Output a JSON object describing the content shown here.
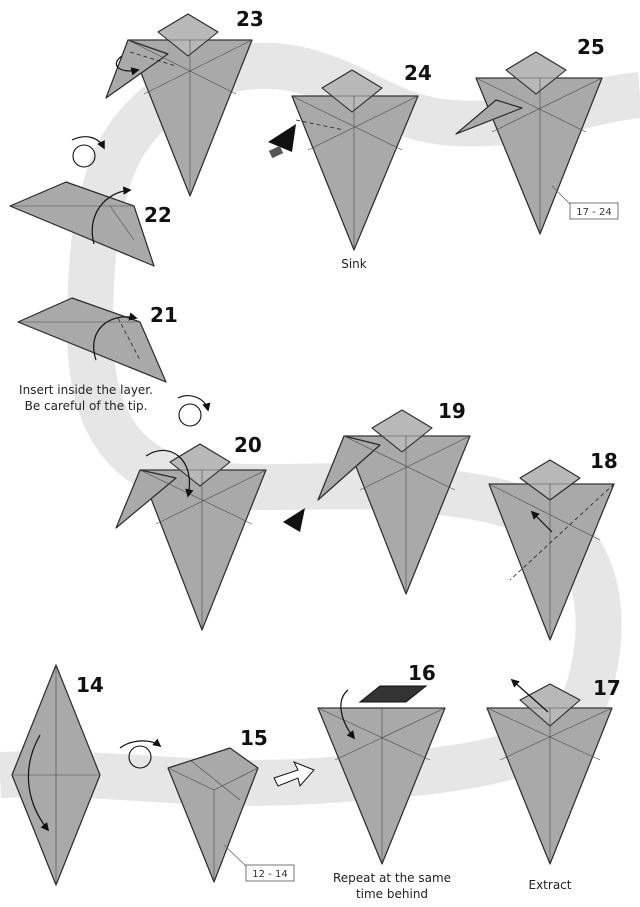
{
  "steps": [
    {
      "number": "14"
    },
    {
      "number": "15",
      "reference": "12 - 14"
    },
    {
      "number": "16",
      "caption": [
        "Repeat at the same",
        "time behind"
      ]
    },
    {
      "number": "17",
      "caption": [
        "Extract"
      ]
    },
    {
      "number": "18"
    },
    {
      "number": "19"
    },
    {
      "number": "20"
    },
    {
      "number": "21",
      "caption": [
        "Insert inside the layer.",
        "Be careful of the tip."
      ]
    },
    {
      "number": "22"
    },
    {
      "number": "23"
    },
    {
      "number": "24",
      "caption": [
        "Sink"
      ]
    },
    {
      "number": "25",
      "reference": "17 - 24"
    }
  ],
  "colors": {
    "paper": "#a9a9a9",
    "path_band": "#e6e6e6",
    "ink": "#111111"
  },
  "symbols": [
    "turn-over-icon",
    "push-arrow-icon",
    "hollow-arrow-icon",
    "fold-arrow-icon"
  ]
}
